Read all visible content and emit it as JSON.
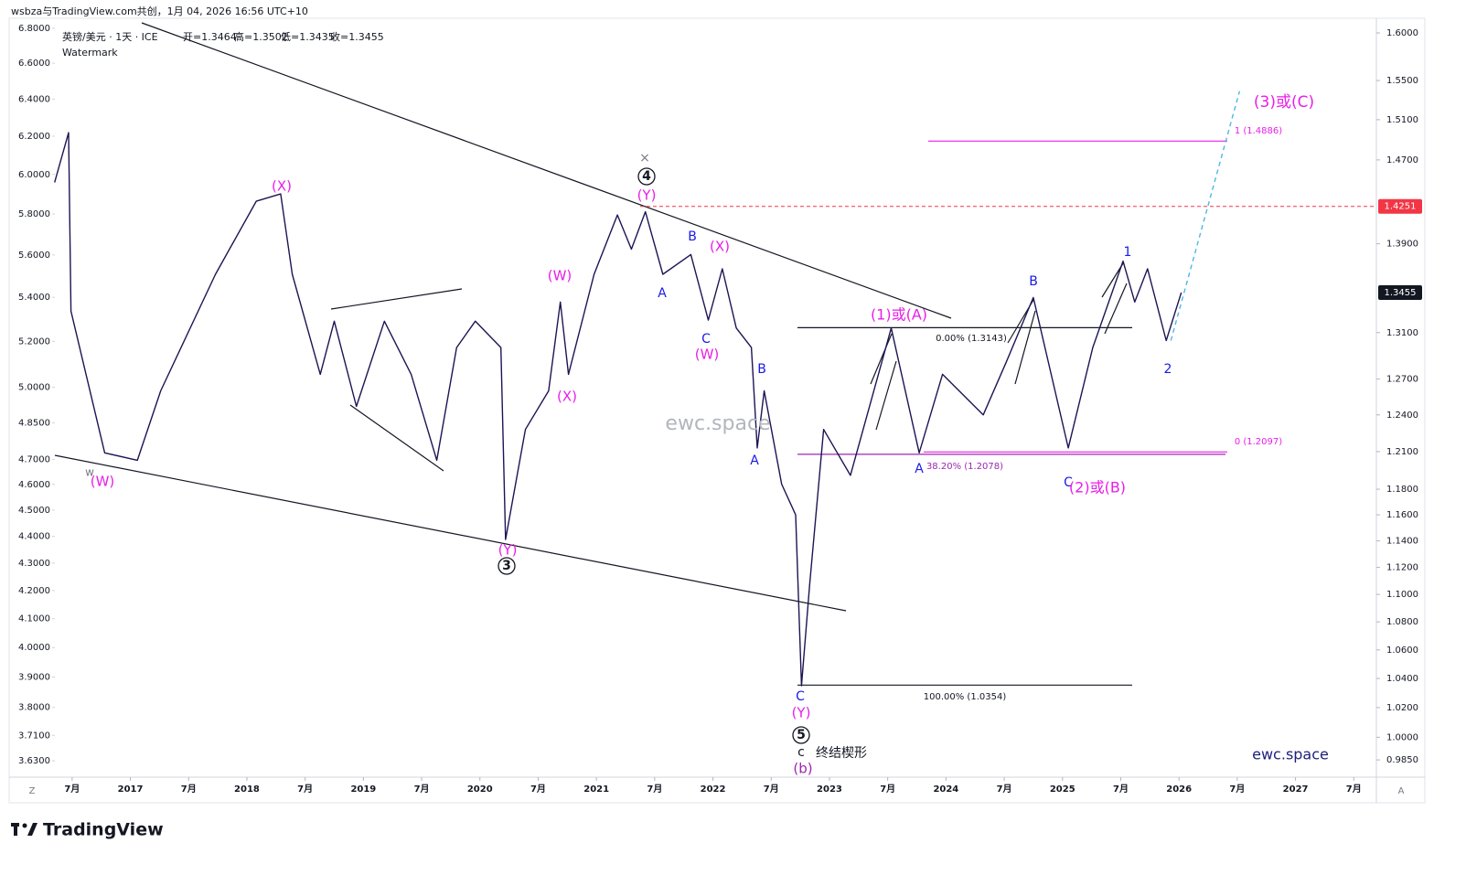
{
  "header": "wsbza与TradingView.com共创，1月 04, 2026 16:56 UTC+10",
  "symbol": "英镑/美元 · 1天 · ICE",
  "ohlc": [
    "开=1.3464",
    "高=1.3502",
    "低=1.3435",
    "收=1.3455"
  ],
  "watermark_label": "Watermark",
  "brand": "TradingView",
  "corner_left": "Z",
  "corner_right": "A",
  "chart_data": {
    "type": "line",
    "ylog": true,
    "y2log": true,
    "grid": false,
    "xlim": [
      2016.352,
      2027.694
    ],
    "xticks": [
      {
        "value": 2016.5,
        "label": "7月"
      },
      {
        "value": 2017,
        "label": "2017"
      },
      {
        "value": 2017.5,
        "label": "7月"
      },
      {
        "value": 2018,
        "label": "2018"
      },
      {
        "value": 2018.5,
        "label": "7月"
      },
      {
        "value": 2019,
        "label": "2019"
      },
      {
        "value": 2019.5,
        "label": "7月"
      },
      {
        "value": 2020,
        "label": "2020"
      },
      {
        "value": 2020.5,
        "label": "7月"
      },
      {
        "value": 2021,
        "label": "2021"
      },
      {
        "value": 2021.5,
        "label": "7月"
      },
      {
        "value": 2022,
        "label": "2022"
      },
      {
        "value": 2022.5,
        "label": "7月"
      },
      {
        "value": 2023,
        "label": "2023"
      },
      {
        "value": 2023.5,
        "label": "7月"
      },
      {
        "value": 2024,
        "label": "2024"
      },
      {
        "value": 2024.5,
        "label": "7月"
      },
      {
        "value": 2025,
        "label": "2025"
      },
      {
        "value": 2025.5,
        "label": "7月"
      },
      {
        "value": 2026,
        "label": "2026"
      },
      {
        "value": 2026.5,
        "label": "7月"
      },
      {
        "value": 2027,
        "label": "2027"
      },
      {
        "value": 2027.5,
        "label": "7月"
      }
    ],
    "ylim": [
      3.585,
      6.827
    ],
    "yticks": [
      {
        "value": 6.8,
        "label": "6.8000"
      },
      {
        "value": 6.6,
        "label": "6.6000"
      },
      {
        "value": 6.4,
        "label": "6.4000"
      },
      {
        "value": 6.2,
        "label": "6.2000"
      },
      {
        "value": 6.0,
        "label": "6.0000"
      },
      {
        "value": 5.8,
        "label": "5.8000"
      },
      {
        "value": 5.6,
        "label": "5.6000"
      },
      {
        "value": 5.4,
        "label": "5.4000"
      },
      {
        "value": 5.2,
        "label": "5.2000"
      },
      {
        "value": 5.0,
        "label": "5.0000"
      },
      {
        "value": 4.85,
        "label": "4.8500"
      },
      {
        "value": 4.7,
        "label": "4.7000"
      },
      {
        "value": 4.6,
        "label": "4.6000"
      },
      {
        "value": 4.5,
        "label": "4.5000"
      },
      {
        "value": 4.4,
        "label": "4.4000"
      },
      {
        "value": 4.3,
        "label": "4.3000"
      },
      {
        "value": 4.2,
        "label": "4.2000"
      },
      {
        "value": 4.1,
        "label": "4.1000"
      },
      {
        "value": 4.0,
        "label": "4.0000"
      },
      {
        "value": 3.9,
        "label": "3.9000"
      },
      {
        "value": 3.8,
        "label": "3.8000"
      },
      {
        "value": 3.71,
        "label": "3.7100"
      },
      {
        "value": 3.63,
        "label": "3.6300"
      }
    ],
    "y2lim": [
      0.9749,
      1.6098
    ],
    "y2ticks": [
      {
        "value": 1.6,
        "label": "1.6000"
      },
      {
        "value": 1.55,
        "label": "1.5500"
      },
      {
        "value": 1.51,
        "label": "1.5100"
      },
      {
        "value": 1.47,
        "label": "1.4700"
      },
      {
        "value": 1.39,
        "label": "1.3900"
      },
      {
        "value": 1.31,
        "label": "1.3100"
      },
      {
        "value": 1.27,
        "label": "1.2700"
      },
      {
        "value": 1.24,
        "label": "1.2400"
      },
      {
        "value": 1.21,
        "label": "1.2100"
      },
      {
        "value": 1.18,
        "label": "1.1800"
      },
      {
        "value": 1.16,
        "label": "1.1600"
      },
      {
        "value": 1.14,
        "label": "1.1400"
      },
      {
        "value": 1.12,
        "label": "1.1200"
      },
      {
        "value": 1.1,
        "label": "1.1000"
      },
      {
        "value": 1.08,
        "label": "1.0800"
      },
      {
        "value": 1.06,
        "label": "1.0600"
      },
      {
        "value": 1.04,
        "label": "1.0400"
      },
      {
        "value": 1.02,
        "label": "1.0200"
      },
      {
        "value": 1.0,
        "label": "1.0000"
      },
      {
        "value": 0.985,
        "label": "0.9850"
      }
    ],
    "price_labels": [
      {
        "value": 1.4251,
        "label": "1.4251",
        "color": "#f23645"
      },
      {
        "value": 1.3455,
        "label": "1.3455",
        "color": "#131722"
      }
    ],
    "series": [
      {
        "axis": "y2",
        "color": "#1c1553",
        "x": [
          2016.35,
          2016.47,
          2016.49,
          2016.78,
          2017.06,
          2017.26,
          2017.73,
          2018.08,
          2018.29,
          2018.39,
          2018.63,
          2018.75,
          2018.94,
          2019.18,
          2019.41,
          2019.63,
          2019.8,
          2019.96,
          2020.18,
          2020.22,
          2020.39,
          2020.59,
          2020.69,
          2020.76,
          2020.98,
          2021.18,
          2021.3,
          2021.42,
          2021.57,
          2021.81,
          2021.96,
          2022.08,
          2022.2,
          2022.33,
          2022.38,
          2022.44,
          2022.59,
          2022.71,
          2022.76,
          2022.83,
          2022.95,
          2023.18,
          2023.53,
          2023.77,
          2023.97,
          2024.32,
          2024.52,
          2024.75,
          2025.05,
          2025.26,
          2025.52,
          2025.62,
          2025.73,
          2025.89,
          2026.02
        ],
        "values": [
          1.448,
          1.497,
          1.329,
          1.209,
          1.203,
          1.26,
          1.362,
          1.43,
          1.437,
          1.362,
          1.274,
          1.32,
          1.247,
          1.32,
          1.274,
          1.203,
          1.297,
          1.32,
          1.297,
          1.141,
          1.228,
          1.26,
          1.337,
          1.274,
          1.362,
          1.417,
          1.385,
          1.42,
          1.362,
          1.38,
          1.321,
          1.367,
          1.314,
          1.297,
          1.213,
          1.26,
          1.184,
          1.16,
          1.035,
          1.107,
          1.228,
          1.191,
          1.314,
          1.209,
          1.274,
          1.24,
          1.285,
          1.341,
          1.213,
          1.297,
          1.374,
          1.337,
          1.367,
          1.303,
          1.3455
        ]
      },
      {
        "axis": "y2",
        "color": "#4fb8e0",
        "dashed": true,
        "x": [
          2025.93,
          2026.52
        ],
        "values": [
          1.303,
          1.539
        ]
      }
    ],
    "levels": [
      {
        "value": 1.3143,
        "label": "0.00% (1.3143)",
        "color": "#131722"
      },
      {
        "value": 1.2078,
        "label": "38.20% (1.2078)",
        "color": "#9c27b0"
      },
      {
        "value": 1.0354,
        "label": "100.00% (1.0354)",
        "color": "#131722"
      },
      {
        "value": 1.2097,
        "label": "0 (1.2097)",
        "color": "#e91ee8"
      },
      {
        "value": 1.4886,
        "label": "1 (1.4886)",
        "color": "#e91ee8"
      }
    ],
    "annotations": [
      {
        "text": "(W)",
        "color": "#e91ee8"
      },
      {
        "text": "w",
        "color": "#787b86"
      },
      {
        "text": "(X)",
        "color": "#e91ee8"
      },
      {
        "text": "(Y)",
        "color": "#e91ee8"
      },
      {
        "text": "3",
        "color": "#131722"
      },
      {
        "text": "(W)",
        "color": "#e91ee8"
      },
      {
        "text": "(X)",
        "color": "#e91ee8"
      },
      {
        "text": "×",
        "color": "#787b86"
      },
      {
        "text": "4",
        "color": "#131722"
      },
      {
        "text": "(Y)",
        "color": "#e91ee8"
      },
      {
        "text": "B",
        "color": "#1a1ae6"
      },
      {
        "text": "(X)",
        "color": "#e91ee8"
      },
      {
        "text": "A",
        "color": "#1a1ae6"
      },
      {
        "text": "C",
        "color": "#1a1ae6"
      },
      {
        "text": "(W)",
        "color": "#e91ee8"
      },
      {
        "text": "B",
        "color": "#1a1ae6"
      },
      {
        "text": "A",
        "color": "#1a1ae6"
      },
      {
        "text": "C",
        "color": "#1a1ae6"
      },
      {
        "text": "(Y)",
        "color": "#e91ee8"
      },
      {
        "text": "5",
        "color": "#131722"
      },
      {
        "text": "c",
        "color": "#131722"
      },
      {
        "text": "终结楔形",
        "color": "#131722"
      },
      {
        "text": "(b)",
        "color": "#9c27b0"
      },
      {
        "text": "(1)或(A)",
        "color": "#e91ee8"
      },
      {
        "text": "A",
        "color": "#1a1ae6"
      },
      {
        "text": "B",
        "color": "#1a1ae6"
      },
      {
        "text": "C",
        "color": "#1a1ae6"
      },
      {
        "text": "(2)或(B)",
        "color": "#e91ee8"
      },
      {
        "text": "1",
        "color": "#1a1ae6"
      },
      {
        "text": "2",
        "color": "#1a1ae6"
      },
      {
        "text": "(3)或(C)",
        "color": "#e91ee8"
      },
      {
        "text": "ewc.space",
        "color": "#b2b5be"
      },
      {
        "text": "ewc.space",
        "color": "#1c1f7a"
      }
    ]
  }
}
